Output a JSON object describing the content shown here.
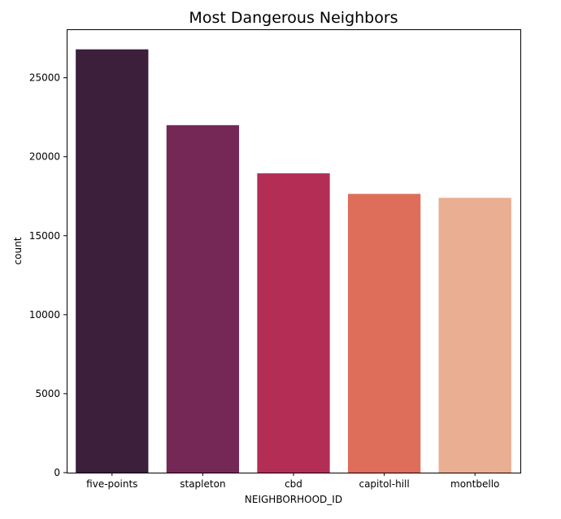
{
  "chart_data": {
    "type": "bar",
    "title": "Most Dangerous Neighbors",
    "xlabel": "NEIGHBORHOOD_ID",
    "ylabel": "count",
    "categories": [
      "five-points",
      "stapleton",
      "cbd",
      "capitol-hill",
      "montbello"
    ],
    "values": [
      26800,
      22000,
      18950,
      17650,
      17400
    ],
    "colors": [
      "#3b1f3b",
      "#752856",
      "#b32d55",
      "#de6e59",
      "#eaae92"
    ],
    "ylim": [
      0,
      28070
    ],
    "yticks": [
      0,
      5000,
      10000,
      15000,
      20000,
      25000
    ],
    "grid": false,
    "legend": "none"
  }
}
